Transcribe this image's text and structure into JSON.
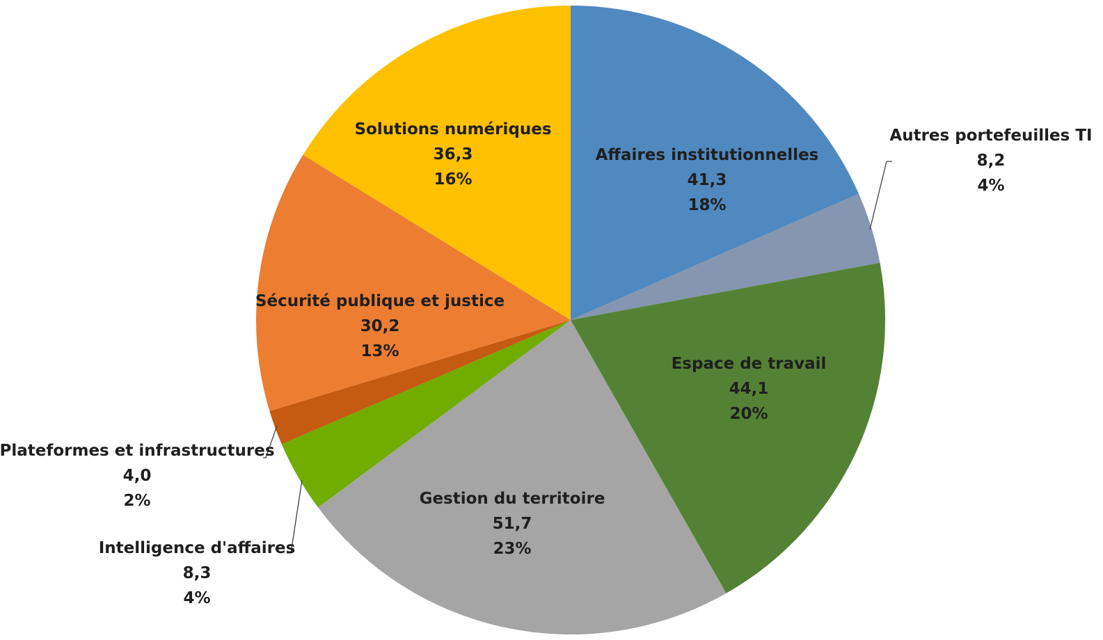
{
  "chart_data": {
    "type": "pie",
    "title": "",
    "slices": [
      {
        "name": "Affaires institutionnelles",
        "value": 41.3,
        "value_label": "41,3",
        "percent_label": "18%",
        "color": "#4f89c0"
      },
      {
        "name": "Autres portefeuilles TI",
        "value": 8.2,
        "value_label": "8,2",
        "percent_label": "4%",
        "color": "#8496b0"
      },
      {
        "name": "Espace de travail",
        "value": 44.1,
        "value_label": "44,1",
        "percent_label": "20%",
        "color": "#548235"
      },
      {
        "name": "Gestion du territoire",
        "value": 51.7,
        "value_label": "51,7",
        "percent_label": "23%",
        "color": "#a5a5a5"
      },
      {
        "name": "Intelligence d'affaires",
        "value": 8.3,
        "value_label": "8,3",
        "percent_label": "4%",
        "color": "#70ad00"
      },
      {
        "name": "Plateformes et infrastructures",
        "value": 4.0,
        "value_label": "4,0",
        "percent_label": "2%",
        "color": "#c55a11"
      },
      {
        "name": "Sécurité publique et justice",
        "value": 30.2,
        "value_label": "30,2",
        "percent_label": "13%",
        "color": "#ed7d31"
      },
      {
        "name": "Solutions numériques",
        "value": 36.3,
        "value_label": "36,3",
        "percent_label": "16%",
        "color": "#ffc000"
      }
    ]
  }
}
